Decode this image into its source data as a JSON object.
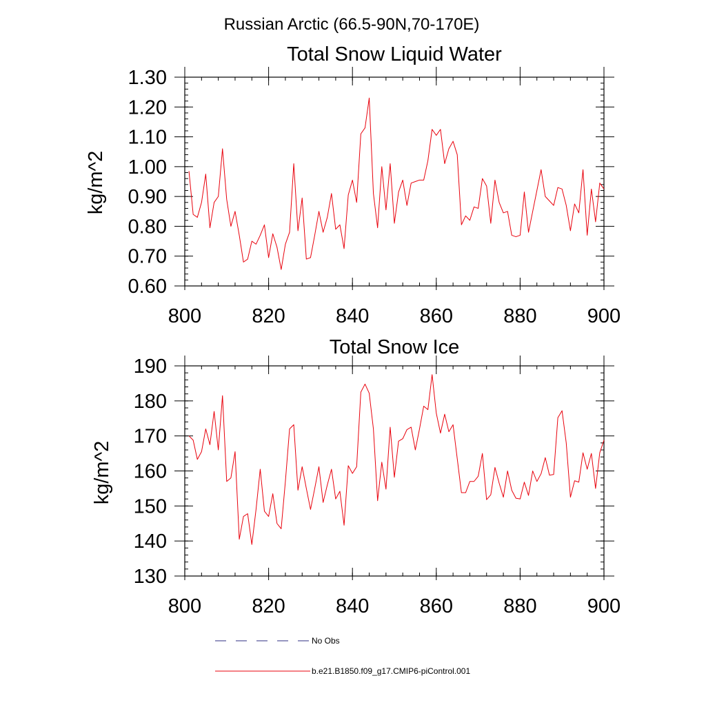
{
  "page_title": "Russian Arctic (66.5-90N,70-170E)",
  "legend": {
    "entries": [
      {
        "label": "No Obs",
        "color": "#2e2e80",
        "style": "dashed"
      },
      {
        "label": "b.e21.B1850.f09_g17.CMIP6-piControl.001",
        "color": "#e8000b",
        "style": "solid"
      }
    ]
  },
  "chart_data": [
    {
      "type": "line",
      "title": "Total Snow Liquid Water",
      "xlabel": "",
      "ylabel": "kg/m^2",
      "xlim": [
        800,
        900
      ],
      "ylim": [
        0.6,
        1.3
      ],
      "xticks": [
        800,
        820,
        840,
        860,
        880,
        900
      ],
      "xtick_labels": [
        "800",
        "820",
        "840",
        "860",
        "880",
        "900"
      ],
      "yticks": [
        0.6,
        0.7,
        0.8,
        0.9,
        1.0,
        1.1,
        1.2,
        1.3
      ],
      "ytick_labels": [
        "0.60",
        "0.70",
        "0.80",
        "0.90",
        "1.00",
        "1.10",
        "1.20",
        "1.30"
      ],
      "x_start": 801,
      "series": [
        {
          "name": "b.e21.B1850.f09_g17.CMIP6-piControl.001",
          "color": "#e8000b",
          "values": [
            0.985,
            0.84,
            0.83,
            0.88,
            0.975,
            0.795,
            0.88,
            0.9,
            1.06,
            0.89,
            0.8,
            0.85,
            0.77,
            0.68,
            0.69,
            0.75,
            0.74,
            0.77,
            0.805,
            0.695,
            0.775,
            0.73,
            0.655,
            0.74,
            0.78,
            1.01,
            0.785,
            0.895,
            0.69,
            0.695,
            0.77,
            0.85,
            0.78,
            0.83,
            0.91,
            0.79,
            0.805,
            0.725,
            0.905,
            0.955,
            0.88,
            1.11,
            1.13,
            1.23,
            0.91,
            0.795,
            1.0,
            0.855,
            1.01,
            0.81,
            0.915,
            0.955,
            0.87,
            0.945,
            0.95,
            0.955,
            0.955,
            1.02,
            1.125,
            1.105,
            1.125,
            1.01,
            1.06,
            1.085,
            1.04,
            0.805,
            0.835,
            0.82,
            0.865,
            0.86,
            0.96,
            0.935,
            0.81,
            0.955,
            0.88,
            0.845,
            0.85,
            0.77,
            0.765,
            0.77,
            0.915,
            0.78,
            0.85,
            0.92,
            0.99,
            0.9,
            0.885,
            0.87,
            0.93,
            0.925,
            0.87,
            0.785,
            0.875,
            0.845,
            0.99,
            0.77,
            0.925,
            0.815,
            0.945,
            0.925
          ]
        }
      ]
    },
    {
      "type": "line",
      "title": "Total Snow Ice",
      "xlabel": "",
      "ylabel": "kg/m^2",
      "xlim": [
        800,
        900
      ],
      "ylim": [
        130,
        190
      ],
      "xticks": [
        800,
        820,
        840,
        860,
        880,
        900
      ],
      "xtick_labels": [
        "800",
        "820",
        "840",
        "860",
        "880",
        "900"
      ],
      "yticks": [
        130,
        140,
        150,
        160,
        170,
        180,
        190
      ],
      "ytick_labels": [
        "130",
        "140",
        "150",
        "160",
        "170",
        "180",
        "190"
      ],
      "x_start": 801,
      "series": [
        {
          "name": "b.e21.B1850.f09_g17.CMIP6-piControl.001",
          "color": "#e8000b",
          "values": [
            170.0,
            168.8,
            163.3,
            165.5,
            172.0,
            167.5,
            177.0,
            166.0,
            181.5,
            157.0,
            158.0,
            165.5,
            140.5,
            147.0,
            147.8,
            139.0,
            149.0,
            160.5,
            148.5,
            147.0,
            153.5,
            145.0,
            143.5,
            157.0,
            172.0,
            173.2,
            154.5,
            161.2,
            155.0,
            149.0,
            155.0,
            161.2,
            151.0,
            156.0,
            160.5,
            152.0,
            154.2,
            144.5,
            161.5,
            159.3,
            161.2,
            182.5,
            184.8,
            182.2,
            172.0,
            151.5,
            162.5,
            154.8,
            172.5,
            158.2,
            168.5,
            169.2,
            171.8,
            172.5,
            166.0,
            172.0,
            178.5,
            177.5,
            187.5,
            176.5,
            170.8,
            176.2,
            171.2,
            173.2,
            163.5,
            153.8,
            153.8,
            157.0,
            157.0,
            158.5,
            165.0,
            151.8,
            153.2,
            161.0,
            156.5,
            152.5,
            160.0,
            154.5,
            152.2,
            152.0,
            156.8,
            153.0,
            160.0,
            157.0,
            159.2,
            163.8,
            158.8,
            159.0,
            175.2,
            177.2,
            168.0,
            152.5,
            157.2,
            156.8,
            165.2,
            160.5,
            165.0,
            155.0,
            165.2,
            168.8
          ]
        }
      ]
    }
  ]
}
